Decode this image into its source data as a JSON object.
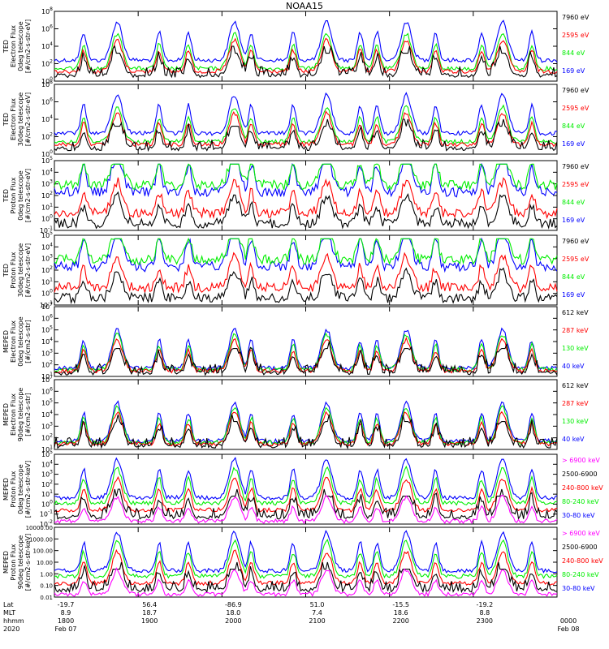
{
  "title": "NOAA15",
  "colors": {
    "blue": "#0000ff",
    "red": "#ff0000",
    "green": "#00ee00",
    "black": "#000000",
    "magenta": "#ff00ff"
  },
  "panels": [
    {
      "ylabel": [
        "TED",
        "Electron Flux",
        "0deg telescope",
        "[#/cm2-s-str-eV]"
      ],
      "yticks": [
        "10^0",
        "10^2",
        "10^4",
        "10^6",
        "10^8"
      ],
      "legend": [
        {
          "text": "7960 eV",
          "color": "black"
        },
        {
          "text": "2595 eV",
          "color": "red"
        },
        {
          "text": "844 eV",
          "color": "green"
        },
        {
          "text": "169 eV",
          "color": "blue"
        }
      ]
    },
    {
      "ylabel": [
        "TED",
        "Electron Flux",
        "30deg telescope",
        "[#/cm2-s-str-eV]"
      ],
      "yticks": [
        "10^0",
        "10^2",
        "10^4",
        "10^6",
        "10^8"
      ],
      "legend": [
        {
          "text": "7960 eV",
          "color": "black"
        },
        {
          "text": "2595 eV",
          "color": "red"
        },
        {
          "text": "844 eV",
          "color": "green"
        },
        {
          "text": "169 eV",
          "color": "blue"
        }
      ]
    },
    {
      "ylabel": [
        "TED",
        "Proton Flux",
        "0deg telescope",
        "[#/cm2-s-str-eV]"
      ],
      "yticks": [
        "10^-1",
        "10^0",
        "10^1",
        "10^2",
        "10^3",
        "10^4",
        "10^5"
      ],
      "legend": [
        {
          "text": "7960 eV",
          "color": "black"
        },
        {
          "text": "2595 eV",
          "color": "red"
        },
        {
          "text": "844 eV",
          "color": "green"
        },
        {
          "text": "169 eV",
          "color": "blue"
        }
      ]
    },
    {
      "ylabel": [
        "TED",
        "Proton Flux",
        "30deg telescope",
        "[#/cm2-s-str-eV]"
      ],
      "yticks": [
        "10^-1",
        "10^0",
        "10^1",
        "10^2",
        "10^3",
        "10^4",
        "10^5"
      ],
      "legend": [
        {
          "text": "7960 eV",
          "color": "black"
        },
        {
          "text": "2595 eV",
          "color": "red"
        },
        {
          "text": "844 eV",
          "color": "green"
        },
        {
          "text": "169 eV",
          "color": "blue"
        }
      ]
    },
    {
      "ylabel": [
        "MEPED",
        "Electron Flux",
        "0deg telescope",
        "[#/cm2-s-str]"
      ],
      "yticks": [
        "10^1",
        "10^2",
        "10^3",
        "10^4",
        "10^5",
        "10^6",
        "10^7"
      ],
      "legend": [
        {
          "text": "612 keV",
          "color": "black"
        },
        {
          "text": "287 keV",
          "color": "red"
        },
        {
          "text": "130 keV",
          "color": "green"
        },
        {
          "text": "40 keV",
          "color": "blue"
        }
      ]
    },
    {
      "ylabel": [
        "MEPED",
        "Electron Flux",
        "90deg telescope",
        "[#/cm2-s-str]"
      ],
      "yticks": [
        "10^1",
        "10^2",
        "10^3",
        "10^4",
        "10^5",
        "10^6",
        "10^7"
      ],
      "legend": [
        {
          "text": "612 keV",
          "color": "black"
        },
        {
          "text": "287 keV",
          "color": "red"
        },
        {
          "text": "130 keV",
          "color": "green"
        },
        {
          "text": "40 keV",
          "color": "blue"
        }
      ]
    },
    {
      "ylabel": [
        "MEPED",
        "Proton Flux",
        "0deg telescope",
        "[#/cm2-s-str-keV]"
      ],
      "yticks": [
        "10^-2",
        "10^-1",
        "10^0",
        "10^1",
        "10^2",
        "10^3",
        "10^4",
        "10^5"
      ],
      "legend": [
        {
          "text": "> 6900 keV",
          "color": "magenta"
        },
        {
          "text": "2500-6900",
          "color": "black"
        },
        {
          "text": "240-800 keV",
          "color": "red"
        },
        {
          "text": "80-240 keV",
          "color": "green"
        },
        {
          "text": "30-80 keV",
          "color": "blue"
        }
      ]
    },
    {
      "ylabel": [
        "MEPED",
        "Proton Flux",
        "90deg telescope",
        "[#/cm2-s-str-keV]"
      ],
      "yticks": [
        "0.01",
        "0.10",
        "1.00",
        "10.00",
        "100.00",
        "1000.00",
        "10000.00"
      ],
      "legend": [
        {
          "text": "> 6900 keV",
          "color": "magenta"
        },
        {
          "text": "2500-6900",
          "color": "black"
        },
        {
          "text": "240-800 keV",
          "color": "red"
        },
        {
          "text": "80-240 keV",
          "color": "green"
        },
        {
          "text": "30-80 keV",
          "color": "blue"
        }
      ]
    }
  ],
  "xaxis": {
    "row_labels": [
      "Lat",
      "MLT",
      "hhmm",
      "2020"
    ],
    "ticks": [
      {
        "lat": "-19.7",
        "mlt": "8.9",
        "hhmm": "1800",
        "date": "Feb 07"
      },
      {
        "lat": "56.4",
        "mlt": "18.7",
        "hhmm": "1900",
        "date": ""
      },
      {
        "lat": "-86.9",
        "mlt": "18.0",
        "hhmm": "2000",
        "date": ""
      },
      {
        "lat": "51.0",
        "mlt": "7.4",
        "hhmm": "2100",
        "date": ""
      },
      {
        "lat": "-15.5",
        "mlt": "18.6",
        "hhmm": "2200",
        "date": ""
      },
      {
        "lat": "-19.2",
        "mlt": "8.8",
        "hhmm": "2300",
        "date": ""
      },
      {
        "lat": "",
        "mlt": "",
        "hhmm": "0000",
        "date": "Feb 08"
      }
    ]
  },
  "chart_data": {
    "type": "line",
    "title": "NOAA15",
    "x_hours": [
      18,
      24
    ],
    "log_y": true,
    "events_hours": [
      18.35,
      18.75,
      19.25,
      19.6,
      20.15,
      20.35,
      20.85,
      21.25,
      21.65,
      21.85,
      22.2,
      22.55,
      23.1,
      23.35,
      23.7
    ],
    "series_note_bands": [
      "169 eV",
      "844 eV",
      "2595 eV",
      "7960 eV",
      "40 keV",
      "130 keV",
      "287 keV",
      "612 keV",
      "30-80 keV",
      "80-240 keV",
      "240-800 keV",
      "2500-6900",
      "> 6900 keV"
    ]
  }
}
